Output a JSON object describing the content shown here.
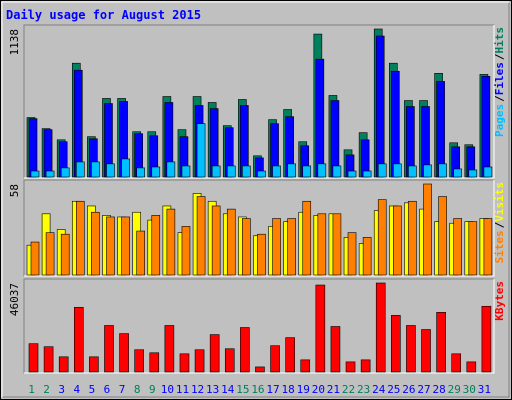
{
  "chart_data": [
    {
      "type": "bar",
      "title": "Daily usage for August 2015",
      "ylim": [
        0,
        1138
      ],
      "yticks": [
        1138
      ],
      "legend_separator": "/",
      "series": [
        {
          "name": "Hits",
          "color": "#00805c",
          "values": [
            457,
            372,
            286,
            875,
            310,
            604,
            604,
            348,
            348,
            619,
            364,
            619,
            573,
            395,
            596,
            163,
            441,
            519,
            271,
            1099,
            627,
            209,
            341,
            1138,
            875,
            588,
            588,
            797,
            263,
            248,
            789
          ]
        },
        {
          "name": "Files",
          "color": "#0000ff",
          "values": [
            449,
            364,
            271,
            821,
            294,
            565,
            581,
            333,
            317,
            573,
            310,
            550,
            526,
            379,
            550,
            147,
            410,
            464,
            240,
            906,
            588,
            170,
            286,
            1084,
            813,
            542,
            542,
            735,
            232,
            232,
            774
          ]
        },
        {
          "name": "Pages",
          "color": "#00c0ff",
          "values": [
            46,
            46,
            70,
            116,
            116,
            101,
            139,
            70,
            77,
            116,
            85,
            410,
            85,
            85,
            85,
            46,
            85,
            101,
            85,
            101,
            85,
            46,
            46,
            101,
            101,
            85,
            93,
            101,
            62,
            54,
            77
          ]
        }
      ]
    },
    {
      "type": "bar",
      "ylim": [
        0,
        58
      ],
      "yticks": [
        58
      ],
      "legend_separator": "/",
      "series": [
        {
          "name": "Visits",
          "color": "#ffff00",
          "values": [
            19,
            39,
            29,
            47,
            44,
            38,
            37,
            40,
            35,
            44,
            27,
            52,
            47,
            39,
            37,
            25,
            31,
            34,
            40,
            38,
            39,
            24,
            20,
            41,
            44,
            46,
            42,
            34,
            33,
            34,
            36
          ]
        },
        {
          "name": "Sites",
          "color": "#ff8000",
          "values": [
            21,
            27,
            26,
            47,
            40,
            37,
            37,
            28,
            38,
            42,
            31,
            50,
            44,
            42,
            36,
            26,
            36,
            36,
            47,
            39,
            39,
            27,
            24,
            48,
            44,
            47,
            58,
            50,
            36,
            34,
            36
          ]
        }
      ]
    },
    {
      "type": "bar",
      "ylim": [
        0,
        46037
      ],
      "yticks": [
        46037
      ],
      "categories": [
        "1",
        "2",
        "3",
        "4",
        "5",
        "6",
        "7",
        "8",
        "9",
        "10",
        "11",
        "12",
        "13",
        "14",
        "15",
        "16",
        "17",
        "18",
        "19",
        "20",
        "21",
        "22",
        "23",
        "24",
        "25",
        "26",
        "27",
        "28",
        "29",
        "30",
        "31"
      ],
      "category_colors": [
        "#00805c",
        "#00805c",
        "#0000ff",
        "#0000ff",
        "#0000ff",
        "#0000ff",
        "#0000ff",
        "#00805c",
        "#00805c",
        "#0000ff",
        "#0000ff",
        "#0000ff",
        "#0000ff",
        "#0000ff",
        "#00805c",
        "#00805c",
        "#0000ff",
        "#0000ff",
        "#0000ff",
        "#0000ff",
        "#0000ff",
        "#00805c",
        "#00805c",
        "#0000ff",
        "#0000ff",
        "#0000ff",
        "#0000ff",
        "#0000ff",
        "#00805c",
        "#00805c",
        "#0000ff"
      ],
      "series": [
        {
          "name": "KBytes",
          "color": "#ff0000",
          "values": [
            14650,
            13080,
            7850,
            33470,
            7850,
            24060,
            19870,
            11510,
            9940,
            24060,
            9410,
            11510,
            19350,
            12030,
            23010,
            2620,
            13600,
            17780,
            6280,
            44980,
            23540,
            5230,
            6280,
            46037,
            29290,
            24060,
            21970,
            30860,
            9410,
            5230,
            34000
          ]
        }
      ]
    }
  ]
}
